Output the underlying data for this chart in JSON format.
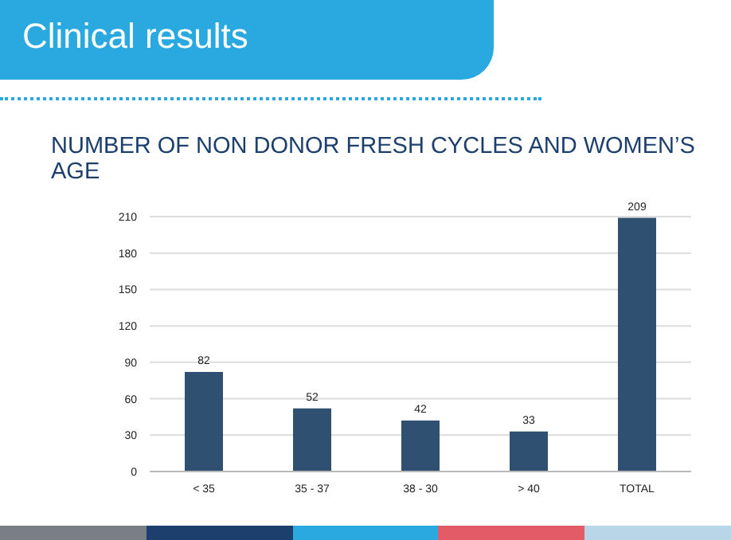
{
  "chart_data": {
    "type": "bar",
    "title": "Clinical results",
    "subtitle": "NUMBER OF NON DONOR FRESH CYCLES AND WOMEN’S AGE",
    "categories": [
      "< 35",
      "35 - 37",
      "38 - 30",
      "> 40",
      "TOTAL"
    ],
    "values": [
      82,
      52,
      42,
      33,
      209
    ],
    "color": "#2f5071",
    "ylim": [
      0,
      210
    ],
    "yticks": [
      0,
      30,
      60,
      90,
      120,
      150,
      180,
      210
    ],
    "grid": "y",
    "data_labels": true
  }
}
